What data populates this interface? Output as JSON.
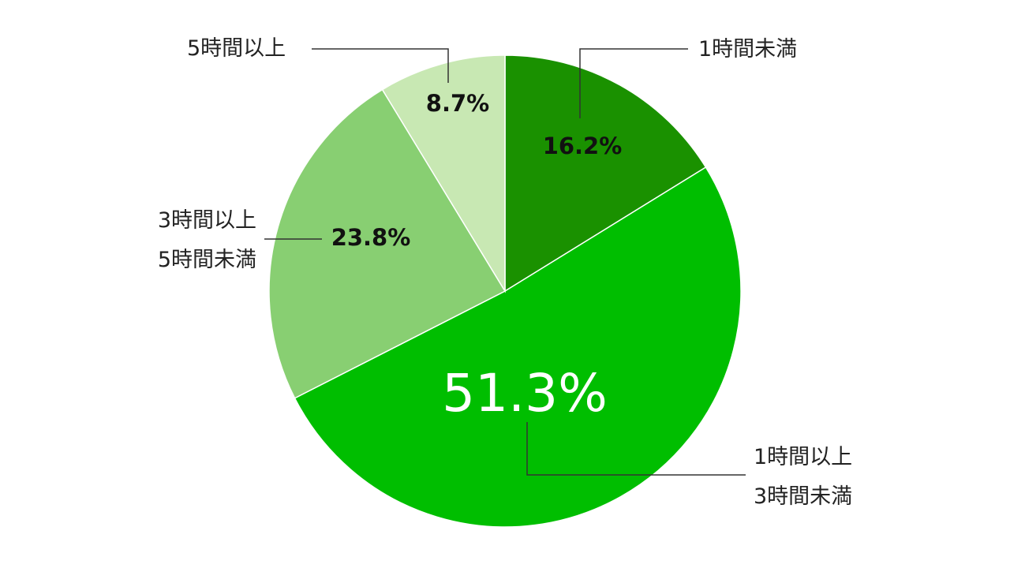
{
  "chart_data": {
    "type": "pie",
    "categories": [
      "1時間未満",
      "1時間以上\n3時間未満",
      "3時間以上\n5時間未満",
      "5時間以上"
    ],
    "values": [
      16.2,
      51.3,
      23.8,
      8.7
    ],
    "value_labels": [
      "16.2%",
      "51.3%",
      "23.8%",
      "8.7%"
    ],
    "colors": [
      "#1a9100",
      "#00be00",
      "#88cf72",
      "#c8e8b3"
    ]
  }
}
